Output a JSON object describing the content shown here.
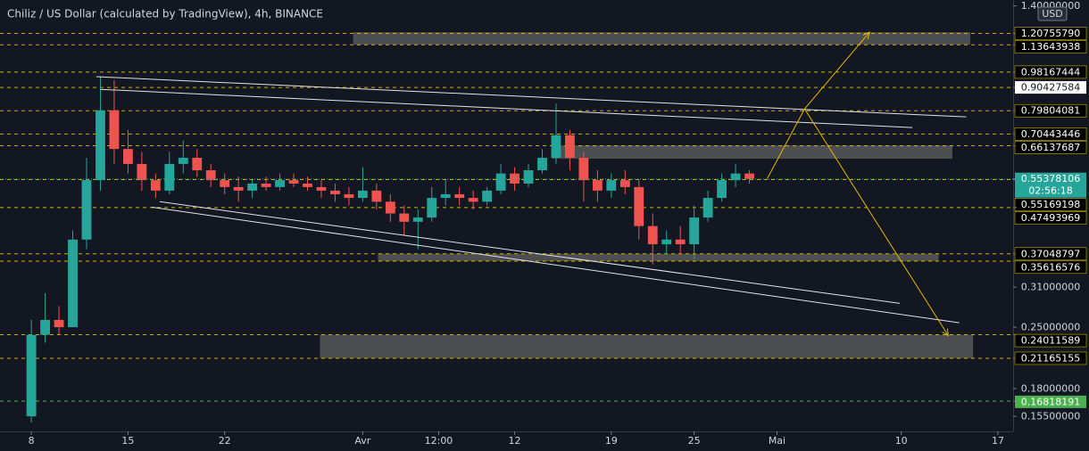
{
  "chart_data": {
    "type": "candlestick",
    "title": "Chiliz / US Dollar (calculated by TradingView), 4h, BINANCE",
    "currency": "USD",
    "log_scale": true,
    "up_color": "#26a69a",
    "down_color": "#ef5350",
    "xlim": [
      -2.27,
      71.1
    ],
    "xticks": [
      {
        "value": 0,
        "label": "8"
      },
      {
        "value": 7,
        "label": "15"
      },
      {
        "value": 14,
        "label": "22"
      },
      {
        "value": 24,
        "label": "Avr"
      },
      {
        "value": 29.5,
        "label": "12:00"
      },
      {
        "value": 35,
        "label": "12"
      },
      {
        "value": 42,
        "label": "19"
      },
      {
        "value": 48,
        "label": "25"
      },
      {
        "value": 54,
        "label": "Mai"
      },
      {
        "value": 63,
        "label": "10"
      },
      {
        "value": 70,
        "label": "17"
      }
    ],
    "ylim": [
      0.143,
      1.445
    ],
    "yticks": [
      {
        "value": 1.4,
        "label": "1.40000000"
      },
      {
        "value": 0.31,
        "label": "0.31000000"
      },
      {
        "value": 0.25,
        "label": "0.25000000"
      },
      {
        "value": 0.18,
        "label": "0.18000000"
      },
      {
        "value": 0.155,
        "label": "0.15500000"
      }
    ],
    "x": [
      0,
      1,
      2,
      3,
      4,
      5,
      6,
      7,
      8,
      9,
      10,
      11,
      12,
      13,
      14,
      15,
      16,
      17,
      18,
      19,
      20,
      21,
      22,
      23,
      24,
      25,
      26,
      27,
      28,
      29,
      30,
      31,
      32,
      33,
      34,
      35,
      36,
      37,
      38,
      39,
      40,
      41,
      42,
      43,
      44,
      45,
      46,
      47,
      48,
      49,
      50,
      51,
      52
    ],
    "open": [
      0.155,
      0.24,
      0.26,
      0.25,
      0.4,
      0.55,
      0.8,
      0.65,
      0.6,
      0.55,
      0.52,
      0.6,
      0.62,
      0.58,
      0.55,
      0.53,
      0.52,
      0.54,
      0.53,
      0.55,
      0.54,
      0.53,
      0.52,
      0.51,
      0.5,
      0.52,
      0.49,
      0.46,
      0.44,
      0.45,
      0.5,
      0.51,
      0.5,
      0.49,
      0.52,
      0.57,
      0.54,
      0.58,
      0.62,
      0.7,
      0.62,
      0.55,
      0.52,
      0.55,
      0.53,
      0.43,
      0.39,
      0.4,
      0.39,
      0.45,
      0.5,
      0.55,
      0.57
    ],
    "high": [
      0.26,
      0.3,
      0.28,
      0.42,
      0.62,
      0.96,
      0.94,
      0.72,
      0.64,
      0.57,
      0.64,
      0.68,
      0.65,
      0.6,
      0.57,
      0.56,
      0.55,
      0.56,
      0.57,
      0.57,
      0.56,
      0.55,
      0.54,
      0.53,
      0.59,
      0.54,
      0.51,
      0.48,
      0.47,
      0.53,
      0.55,
      0.53,
      0.52,
      0.53,
      0.6,
      0.59,
      0.6,
      0.65,
      0.83,
      0.72,
      0.64,
      0.58,
      0.57,
      0.58,
      0.55,
      0.46,
      0.42,
      0.43,
      0.48,
      0.52,
      0.57,
      0.6,
      0.58
    ],
    "low": [
      0.15,
      0.23,
      0.24,
      0.25,
      0.38,
      0.52,
      0.6,
      0.57,
      0.52,
      0.5,
      0.51,
      0.57,
      0.56,
      0.53,
      0.51,
      0.49,
      0.5,
      0.52,
      0.52,
      0.53,
      0.52,
      0.5,
      0.49,
      0.48,
      0.49,
      0.47,
      0.44,
      0.41,
      0.38,
      0.44,
      0.48,
      0.48,
      0.47,
      0.48,
      0.51,
      0.52,
      0.53,
      0.57,
      0.6,
      0.58,
      0.49,
      0.49,
      0.5,
      0.51,
      0.4,
      0.35,
      0.37,
      0.37,
      0.36,
      0.44,
      0.49,
      0.53,
      0.54
    ],
    "close": [
      0.24,
      0.26,
      0.25,
      0.4,
      0.55,
      0.8,
      0.65,
      0.6,
      0.55,
      0.52,
      0.6,
      0.62,
      0.58,
      0.55,
      0.53,
      0.52,
      0.54,
      0.53,
      0.55,
      0.54,
      0.53,
      0.52,
      0.51,
      0.5,
      0.52,
      0.49,
      0.46,
      0.44,
      0.45,
      0.5,
      0.51,
      0.5,
      0.49,
      0.52,
      0.57,
      0.54,
      0.58,
      0.62,
      0.7,
      0.62,
      0.55,
      0.52,
      0.55,
      0.53,
      0.43,
      0.39,
      0.4,
      0.39,
      0.45,
      0.5,
      0.55,
      0.57,
      0.554
    ],
    "last_price": {
      "value": 0.55378106,
      "label": "0.55378106",
      "countdown": "02:56:18",
      "color": "#26a69a"
    },
    "levels": [
      {
        "value": 1.2075579,
        "label": "1.20755790",
        "color": "#c8b400",
        "label_color": "#000000"
      },
      {
        "value": 1.13643938,
        "label": "1.13643938",
        "color": "#c8b400",
        "label_color": "#000000"
      },
      {
        "value": 0.98167444,
        "label": "0.98167444",
        "color": "#c8b400",
        "label_color": "#000000"
      },
      {
        "value": 0.90427584,
        "label": "0.90427584",
        "color": "#c8b400",
        "label_color": "#ffffff"
      },
      {
        "value": 0.79804081,
        "label": "0.79804081",
        "color": "#c8b400",
        "label_color": "#000000"
      },
      {
        "value": 0.70443446,
        "label": "0.70443446",
        "color": "#c8b400",
        "label_color": "#000000"
      },
      {
        "value": 0.66137687,
        "label": "0.66137687",
        "color": "#c8b400",
        "label_color": "#000000"
      },
      {
        "value": 0.55169198,
        "label": "0.55169198",
        "color": "#c8b400",
        "label_color": "#000000"
      },
      {
        "value": 0.47493969,
        "label": "0.47493969",
        "color": "#c8b400",
        "label_color": "#000000"
      },
      {
        "value": 0.37048797,
        "label": "0.37048797",
        "color": "#c8b400",
        "label_color": "#000000"
      },
      {
        "value": 0.35616576,
        "label": "0.35616576",
        "color": "#c8b400",
        "label_color": "#000000"
      },
      {
        "value": 0.24011589,
        "label": "0.24011589",
        "color": "#c8b400",
        "label_color": "#000000"
      },
      {
        "value": 0.21165155,
        "label": "0.21165155",
        "color": "#c8b400",
        "label_color": "#000000"
      },
      {
        "value": 0.16818191,
        "label": "0.16818191",
        "color": "#4caf50",
        "label_color": "#4caf50"
      }
    ],
    "zones": [
      {
        "x": [
          23.3,
          68.0
        ],
        "y": [
          1.138,
          1.216
        ]
      },
      {
        "x": [
          37.7,
          66.7
        ],
        "y": [
          0.617,
          0.663
        ]
      },
      {
        "x": [
          25.1,
          65.7
        ],
        "y": [
          0.3562,
          0.3705
        ]
      },
      {
        "x": [
          20.9,
          68.2
        ],
        "y": [
          0.2117,
          0.2401
        ]
      }
    ],
    "trend_lines": [
      {
        "x": [
          4.7,
          67.7
        ],
        "y": [
          0.958,
          0.772
        ]
      },
      {
        "x": [
          5.0,
          63.8
        ],
        "y": [
          0.895,
          0.729
        ]
      },
      {
        "x": [
          8.7,
          67.2
        ],
        "y": [
          0.476,
          0.256
        ]
      },
      {
        "x": [
          9.3,
          62.9
        ],
        "y": [
          0.49,
          0.284
        ]
      }
    ],
    "arrows": [
      {
        "x": [
          53.3,
          56.0,
          60.7
        ],
        "y": [
          0.555,
          0.806,
          1.216
        ]
      },
      {
        "x": [
          56.0,
          66.4
        ],
        "y": [
          0.806,
          0.239
        ]
      }
    ],
    "arrow_color": "#e6b800"
  }
}
